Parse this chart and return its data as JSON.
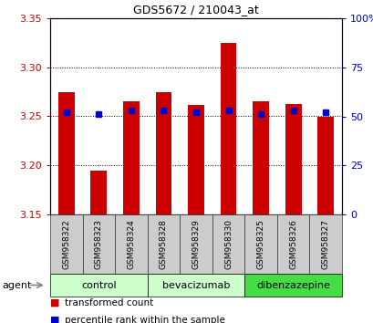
{
  "title": "GDS5672 / 210043_at",
  "samples": [
    "GSM958322",
    "GSM958323",
    "GSM958324",
    "GSM958328",
    "GSM958329",
    "GSM958330",
    "GSM958325",
    "GSM958326",
    "GSM958327"
  ],
  "red_values": [
    3.275,
    3.195,
    3.265,
    3.275,
    3.262,
    3.325,
    3.265,
    3.263,
    3.25
  ],
  "blue_values": [
    52,
    51,
    53,
    53,
    52,
    53,
    51,
    53,
    52
  ],
  "groups": [
    {
      "label": "control",
      "span": [
        0,
        3
      ],
      "color": "#ccffcc"
    },
    {
      "label": "bevacizumab",
      "span": [
        3,
        6
      ],
      "color": "#ccffcc"
    },
    {
      "label": "dibenzazepine",
      "span": [
        6,
        9
      ],
      "color": "#44dd44"
    }
  ],
  "ylim_left": [
    3.15,
    3.35
  ],
  "ylim_right": [
    0,
    100
  ],
  "yticks_left": [
    3.15,
    3.2,
    3.25,
    3.3,
    3.35
  ],
  "yticks_right": [
    0,
    25,
    50,
    75,
    100
  ],
  "ytick_labels_right": [
    "0",
    "25",
    "50",
    "75",
    "100%"
  ],
  "left_color": "#cc0000",
  "blue_color": "#0000cc",
  "bar_width": 0.5,
  "bar_baseline": 3.15,
  "sample_box_color": "#cccccc",
  "sample_box_edge": "#333333",
  "grid_color": "#000000",
  "grid_style": "dotted",
  "grid_values": [
    3.2,
    3.25,
    3.3
  ]
}
